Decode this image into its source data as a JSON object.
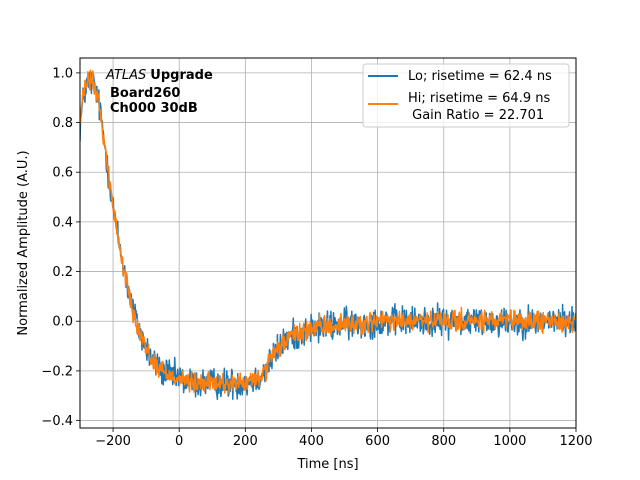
{
  "chart_data": {
    "type": "line",
    "xlabel": "Time [ns]",
    "ylabel": "Normalized Amplitude (A.U.)",
    "xlim": [
      -300,
      1200
    ],
    "ylim": [
      -0.43,
      1.06
    ],
    "xticks": [
      -200,
      0,
      200,
      400,
      600,
      800,
      1000,
      1200
    ],
    "yticks": [
      -0.4,
      -0.2,
      0.0,
      0.2,
      0.4,
      0.6,
      0.8,
      1.0
    ],
    "xtick_labels": [
      "−200",
      "0",
      "200",
      "400",
      "600",
      "800",
      "1000",
      "1200"
    ],
    "ytick_labels": [
      "−0.4",
      "−0.2",
      "0.0",
      "0.2",
      "0.4",
      "0.6",
      "0.8",
      "1.0"
    ],
    "grid": true,
    "legend_position": "top-right",
    "annotation": {
      "atlas": "ATLAS",
      "upgrade": "Upgrade",
      "board": "Board260",
      "channel": "Ch000 30dB"
    },
    "series": [
      {
        "name": "Lo; risetime = 62.4 ns",
        "color": "#1f77b4",
        "noise": 0.03,
        "x": [
          -300,
          -290,
          -280,
          -270,
          -260,
          -250,
          -240,
          -230,
          -220,
          -210,
          -200,
          -180,
          -160,
          -140,
          -120,
          -100,
          -80,
          -60,
          -40,
          -20,
          0,
          20,
          40,
          60,
          80,
          100,
          120,
          140,
          160,
          180,
          200,
          220,
          240,
          260,
          280,
          300,
          320,
          340,
          360,
          380,
          400,
          450,
          500,
          550,
          600,
          650,
          700,
          800,
          900,
          1000,
          1100,
          1200
        ],
        "y": [
          0.78,
          0.9,
          0.95,
          0.97,
          0.96,
          0.92,
          0.85,
          0.76,
          0.66,
          0.56,
          0.46,
          0.3,
          0.16,
          0.05,
          -0.04,
          -0.11,
          -0.16,
          -0.19,
          -0.21,
          -0.22,
          -0.23,
          -0.24,
          -0.25,
          -0.25,
          -0.25,
          -0.25,
          -0.25,
          -0.25,
          -0.25,
          -0.25,
          -0.25,
          -0.24,
          -0.23,
          -0.2,
          -0.15,
          -0.11,
          -0.08,
          -0.06,
          -0.05,
          -0.04,
          -0.03,
          -0.02,
          -0.01,
          -0.01,
          0.0,
          0.0,
          0.0,
          0.0,
          0.0,
          0.0,
          0.0,
          0.0
        ]
      },
      {
        "name": "Hi; risetime = 64.9 ns\n Gain Ratio = 22.701",
        "color": "#ff7f0e",
        "noise": 0.02,
        "x": [
          -300,
          -290,
          -280,
          -270,
          -260,
          -250,
          -240,
          -230,
          -220,
          -210,
          -200,
          -180,
          -160,
          -140,
          -120,
          -100,
          -80,
          -60,
          -40,
          -20,
          0,
          20,
          40,
          60,
          80,
          100,
          120,
          140,
          160,
          180,
          200,
          220,
          240,
          260,
          280,
          300,
          320,
          340,
          360,
          380,
          400,
          450,
          500,
          550,
          600,
          650,
          700,
          800,
          900,
          1000,
          1100,
          1200
        ],
        "y": [
          0.8,
          0.91,
          0.96,
          0.97,
          0.96,
          0.92,
          0.85,
          0.76,
          0.66,
          0.56,
          0.46,
          0.3,
          0.16,
          0.05,
          -0.04,
          -0.11,
          -0.16,
          -0.19,
          -0.21,
          -0.22,
          -0.23,
          -0.24,
          -0.25,
          -0.25,
          -0.25,
          -0.25,
          -0.25,
          -0.25,
          -0.25,
          -0.25,
          -0.25,
          -0.24,
          -0.23,
          -0.2,
          -0.15,
          -0.11,
          -0.08,
          -0.06,
          -0.05,
          -0.04,
          -0.03,
          -0.02,
          -0.01,
          -0.01,
          0.0,
          0.0,
          0.0,
          0.0,
          0.0,
          0.0,
          0.0,
          0.0
        ]
      }
    ]
  }
}
